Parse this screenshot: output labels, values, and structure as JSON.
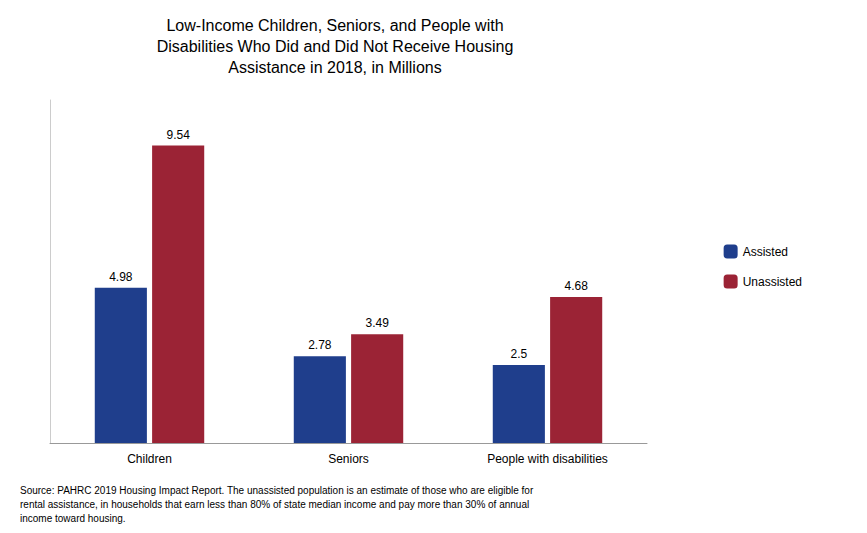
{
  "chart_data": {
    "type": "bar",
    "title": "Low-Income Children, Seniors, and People with\nDisabilities Who Did and Did Not Receive Housing\nAssistance in 2018, in Millions",
    "categories": [
      "Children",
      "Seniors",
      "People with disabilities"
    ],
    "series": [
      {
        "name": "Assisted",
        "color": "#1F3E8C",
        "values": [
          4.98,
          2.78,
          2.5
        ]
      },
      {
        "name": "Unassisted",
        "color": "#9B2335",
        "values": [
          9.54,
          3.49,
          4.68
        ]
      }
    ],
    "ylim": [
      0,
      11
    ],
    "grid": false,
    "legend": "right",
    "data_labels": true,
    "tick_labels": "x",
    "annotations": [
      "Source: PAHRC 2019 Housing Impact Report. The unassisted population is an estimate of those who are eligible for\nrental assistance, in households that earn less than 80% of state median income and pay more than 30% of annual\nincome toward housing."
    ]
  }
}
